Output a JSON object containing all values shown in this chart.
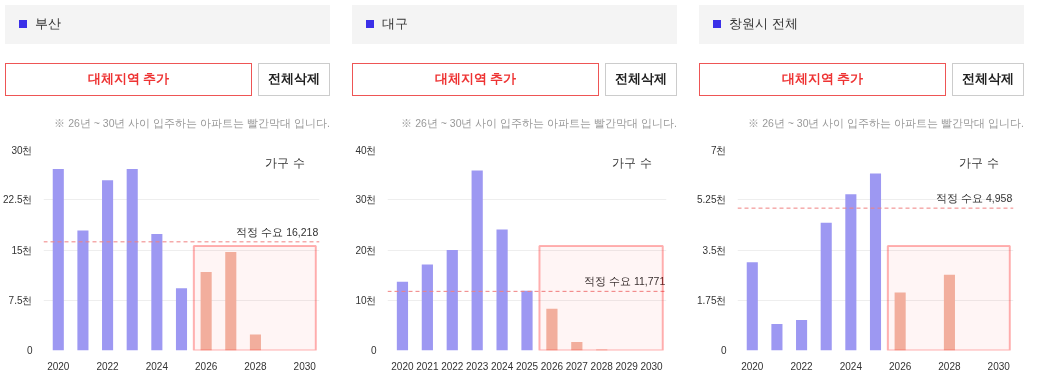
{
  "chart_data": [
    {
      "type": "bar",
      "title": "부산",
      "subtitle": "※ 26년 ~ 30년 사이 입주하는 아파트는 빨간막대 입니다.",
      "annotations": [
        "대체지역 추가",
        "전체삭제",
        "가구 수"
      ],
      "categories": [
        "2020",
        null,
        "2022",
        null,
        "2024",
        null,
        "2026",
        null,
        "2028",
        null,
        "2030"
      ],
      "values": [
        27.1,
        17.9,
        25.4,
        27.1,
        17.4,
        9.3,
        11.7,
        14.7,
        2.4,
        0,
        0
      ],
      "colors": [
        "#9d98f2",
        "#9d98f2",
        "#9d98f2",
        "#9d98f2",
        "#9d98f2",
        "#9d98f2",
        "#f2b6a4",
        "#f2b6a4",
        "#f2b6a4",
        "#f2b6a4",
        "#f2b6a4"
      ],
      "ylim": [
        0,
        30
      ],
      "yticks": [
        0,
        {
          "value": 7.5,
          "label": "7.5천"
        },
        {
          "value": 15,
          "label": "15천"
        },
        {
          "value": 22.5,
          "label": "22.5천"
        },
        {
          "value": 30,
          "label": "30천"
        }
      ],
      "ref_lines": [
        {
          "axis": "y",
          "value": 16.218,
          "label": "적정 수요 16,218",
          "color": "#f08080",
          "line_style": "dashed"
        }
      ],
      "bands": [
        {
          "axis": "x",
          "from": "2026",
          "to": "2030",
          "color": "#ff0000"
        }
      ],
      "grid": "y"
    },
    {
      "type": "bar",
      "title": "대구",
      "subtitle": "※ 26년 ~ 30년 사이 입주하는 아파트는 빨간막대 입니다.",
      "annotations": [
        "대체지역 추가",
        "전체삭제",
        "가구 수"
      ],
      "categories": [
        "2020",
        "2021",
        "2022",
        "2023",
        "2024",
        "2025",
        "2026",
        "2027",
        "2028",
        "2029",
        "2030"
      ],
      "values": [
        13.7,
        17.1,
        20.0,
        35.8,
        24.1,
        11.9,
        8.3,
        1.7,
        0.2,
        0,
        0
      ],
      "colors": [
        "#9d98f2",
        "#9d98f2",
        "#9d98f2",
        "#9d98f2",
        "#9d98f2",
        "#9d98f2",
        "#f2b6a4",
        "#f2b6a4",
        "#f2b6a4",
        "#f2b6a4",
        "#f2b6a4"
      ],
      "ylim": [
        0,
        40
      ],
      "yticks": [
        0,
        {
          "value": 10,
          "label": "10천"
        },
        {
          "value": 20,
          "label": "20천"
        },
        {
          "value": 30,
          "label": "30천"
        },
        {
          "value": 40,
          "label": "40천"
        }
      ],
      "ref_lines": [
        {
          "axis": "y",
          "value": 11.771,
          "label": "적정 수요 11,771",
          "color": "#f08080",
          "line_style": "dashed"
        }
      ],
      "bands": [
        {
          "axis": "x",
          "from": "2026",
          "to": "2030",
          "color": "#ff0000"
        }
      ],
      "grid": "y"
    },
    {
      "type": "bar",
      "title": "창원시 전체",
      "subtitle": "※ 26년 ~ 30년 사이 입주하는 아파트는 빨간막대 입니다.",
      "annotations": [
        "대체지역 추가",
        "전체삭제",
        "가구 수"
      ],
      "categories": [
        "2020",
        null,
        "2022",
        null,
        "2024",
        null,
        "2026",
        null,
        "2028",
        null,
        "2030"
      ],
      "values": [
        3.07,
        0.92,
        1.06,
        4.45,
        5.44,
        6.16,
        2.02,
        0,
        2.64,
        0,
        0
      ],
      "colors": [
        "#9d98f2",
        "#9d98f2",
        "#9d98f2",
        "#9d98f2",
        "#9d98f2",
        "#9d98f2",
        "#f2b6a4",
        "#f2b6a4",
        "#f2b6a4",
        "#f2b6a4",
        "#f2b6a4"
      ],
      "ylim": [
        0,
        7
      ],
      "yticks": [
        0,
        {
          "value": 1.75,
          "label": "1.75천"
        },
        {
          "value": 3.5,
          "label": "3.5천"
        },
        {
          "value": 5.25,
          "label": "5.25천"
        },
        {
          "value": 7,
          "label": "7천"
        }
      ],
      "ref_lines": [
        {
          "axis": "y",
          "value": 4.958,
          "label": "적정 수요 4,958",
          "color": "#f08080",
          "line_style": "dashed"
        }
      ],
      "bands": [
        {
          "axis": "x",
          "from": "2026",
          "to": "2030",
          "color": "#ff0000"
        }
      ],
      "grid": "y"
    }
  ]
}
